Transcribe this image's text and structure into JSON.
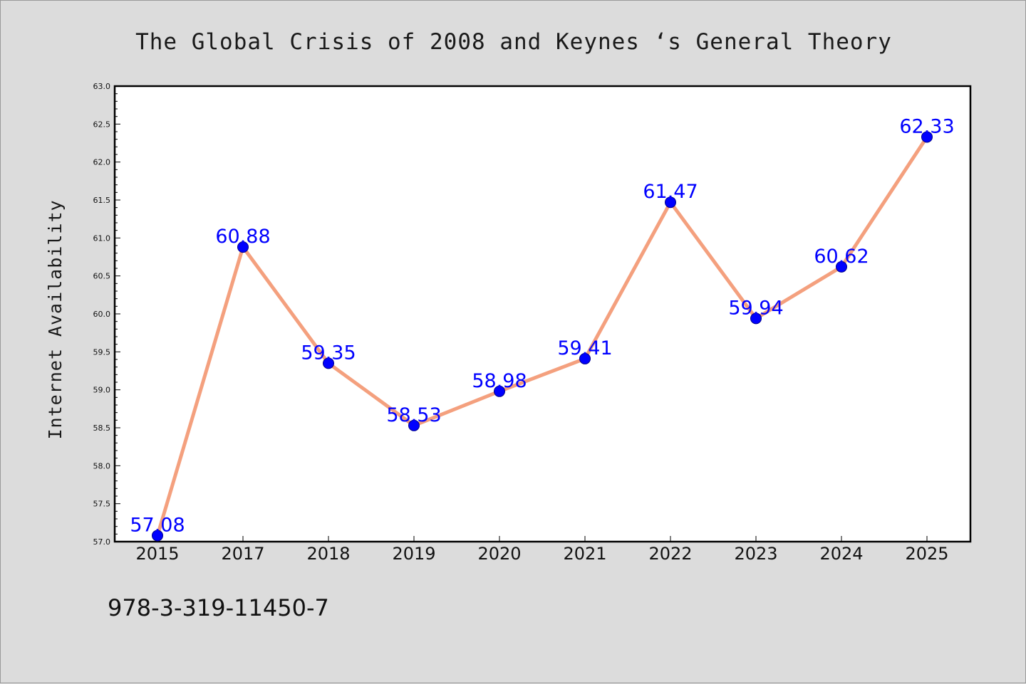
{
  "chart_data": {
    "type": "line",
    "title": "The Global Crisis of 2008 and Keynes ‘s General Theory",
    "xlabel": "",
    "ylabel": "Internet Availability",
    "categories": [
      "2015",
      "2017",
      "2018",
      "2019",
      "2020",
      "2021",
      "2022",
      "2023",
      "2024",
      "2025"
    ],
    "series": [
      {
        "values": [
          57.08,
          60.88,
          59.35,
          58.53,
          58.98,
          59.41,
          61.47,
          59.94,
          60.62,
          62.33
        ],
        "data_labels": [
          "57.08",
          "60.88",
          "59.35",
          "58.53",
          "58.98",
          "59.41",
          "61.47",
          "59.94",
          "60.62",
          "62.33"
        ],
        "line_color": "#f4a07e",
        "marker_color": "#0000ff"
      }
    ],
    "ylim": [
      57.0,
      63.0
    ],
    "y_ticks": [
      "57.0",
      "57.5",
      "58.0",
      "58.5",
      "59.0",
      "59.5",
      "60.0",
      "60.5",
      "61.0",
      "61.5",
      "62.0",
      "62.5",
      "63.0"
    ],
    "grid": false,
    "legend": "none",
    "footer_text": "978-3-319-11450-7",
    "colors": {
      "background": "#dcdcdc",
      "plot_background": "#ffffff",
      "label_color": "#0000ff"
    }
  }
}
